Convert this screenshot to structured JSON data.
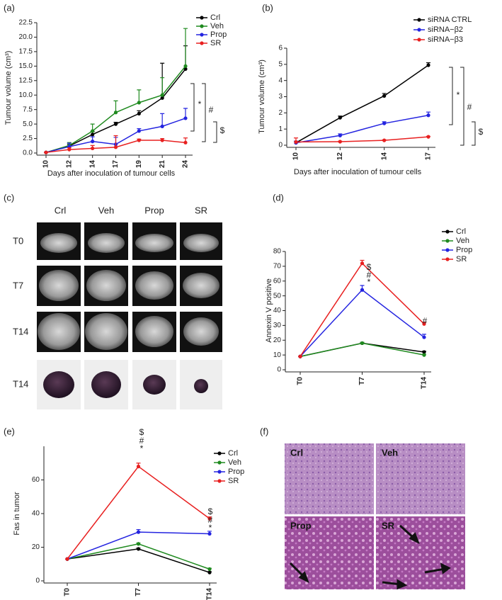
{
  "chart_data": [
    {
      "type": "line",
      "panel": "(a)",
      "x_label": "Days after inoculation of tumour cells",
      "y_label": "Tumour volume (cm³)",
      "categories": [
        "10",
        "12",
        "14",
        "17",
        "19",
        "21",
        "24"
      ],
      "ylim": [
        0,
        22.5
      ],
      "yticks": [
        {
          "value": 0,
          "label": "0.0"
        },
        2.5,
        {
          "value": 5,
          "label": "5.0"
        },
        7.5,
        {
          "value": 10,
          "label": "10.0"
        },
        12.5,
        {
          "value": 15,
          "label": "15.0"
        },
        17.5,
        {
          "value": 20,
          "label": "20.0"
        },
        22.5
      ],
      "series": [
        {
          "name": "Crl",
          "color": "#000000",
          "values": [
            0.1,
            1.2,
            3.2,
            5.0,
            6.8,
            9.5,
            14.5
          ],
          "errors": [
            0,
            0.3,
            0.5,
            0.3,
            0.5,
            6,
            4
          ]
        },
        {
          "name": "Veh",
          "color": "#1f8a1f",
          "values": [
            0.1,
            1.3,
            3.8,
            7.0,
            8.7,
            10.0,
            15.0
          ],
          "errors": [
            0,
            0.5,
            1.2,
            2,
            2.2,
            3,
            6.5
          ]
        },
        {
          "name": "Prop",
          "color": "#2424e0",
          "values": [
            0.1,
            1.1,
            2.0,
            1.5,
            3.8,
            4.6,
            6.0
          ],
          "errors": [
            0,
            0.6,
            0.8,
            1.2,
            0.4,
            2.2,
            1.7
          ]
        },
        {
          "name": "SR",
          "color": "#e82020",
          "values": [
            0.1,
            0.6,
            0.8,
            1.0,
            2.2,
            2.2,
            1.8
          ],
          "errors": [
            0,
            0.3,
            0.5,
            2,
            0.2,
            0.3,
            0.8
          ]
        }
      ],
      "annotations": [
        "*",
        "#",
        "$"
      ]
    },
    {
      "type": "line",
      "panel": "(b)",
      "x_label": "Days after inoculation of tumour cells",
      "y_label": "Tumour volume (cm³)",
      "categories": [
        "10",
        "12",
        "14",
        "17"
      ],
      "ylim": [
        0,
        6
      ],
      "yticks": [
        0,
        1,
        2,
        3,
        4,
        5,
        6
      ],
      "series": [
        {
          "name": "siRNA CTRL",
          "color": "#000000",
          "values": [
            0.15,
            1.7,
            3.05,
            4.95
          ],
          "errors": [
            0.1,
            0.1,
            0.15,
            0.15
          ]
        },
        {
          "name": "siRNA−β2",
          "color": "#2424e0",
          "values": [
            0.15,
            0.6,
            1.35,
            1.85
          ],
          "errors": [
            0.1,
            0.1,
            0.1,
            0.2
          ]
        },
        {
          "name": "siRNA−β3",
          "color": "#e82020",
          "values": [
            0.2,
            0.22,
            0.3,
            0.52
          ],
          "errors": [
            0.25,
            0.03,
            0.03,
            0.03
          ]
        }
      ],
      "annotations": [
        "*",
        "#",
        "$"
      ]
    },
    {
      "type": "line",
      "panel": "(d)",
      "y_label": "Annexin V positive",
      "categories": [
        "T0",
        "T7",
        "T14"
      ],
      "ylim": [
        0,
        80
      ],
      "yticks": [
        0,
        10,
        20,
        30,
        40,
        50,
        60,
        70,
        80
      ],
      "series": [
        {
          "name": "Crl",
          "color": "#000000",
          "values": [
            9,
            18,
            12
          ],
          "errors": [
            0,
            0.5,
            0.5
          ]
        },
        {
          "name": "Veh",
          "color": "#1f8a1f",
          "values": [
            9,
            18,
            10
          ],
          "errors": [
            0,
            0.5,
            0.5
          ]
        },
        {
          "name": "Prop",
          "color": "#2424e0",
          "values": [
            9,
            54,
            22
          ],
          "errors": [
            0,
            3,
            2
          ]
        },
        {
          "name": "SR",
          "color": "#e82020",
          "values": [
            9,
            72,
            31
          ],
          "errors": [
            0,
            2,
            1
          ]
        }
      ],
      "annotations": [
        "$",
        "#",
        "*",
        "#"
      ]
    },
    {
      "type": "line",
      "panel": "(e)",
      "y_label": "Fas in tumor",
      "categories": [
        "T0",
        "T7",
        "T14"
      ],
      "ylim": [
        0,
        80
      ],
      "yticks": [
        0,
        20,
        40,
        60
      ],
      "series": [
        {
          "name": "Crl",
          "color": "#000000",
          "values": [
            13,
            19,
            5
          ],
          "errors": [
            0,
            0.5,
            0.5
          ]
        },
        {
          "name": "Veh",
          "color": "#1f8a1f",
          "values": [
            13,
            22,
            7
          ],
          "errors": [
            0,
            0.5,
            0.5
          ]
        },
        {
          "name": "Prop",
          "color": "#2424e0",
          "values": [
            13,
            29,
            28
          ],
          "errors": [
            0,
            1.5,
            1.5
          ]
        },
        {
          "name": "SR",
          "color": "#e82020",
          "values": [
            13,
            68,
            37
          ],
          "errors": [
            0,
            2,
            1
          ]
        }
      ],
      "annotations": [
        "$",
        "#",
        "*",
        "$",
        "#",
        "*"
      ]
    }
  ],
  "panels": [
    {
      "label": "(c)",
      "columns": [
        "Crl",
        "Veh",
        "Prop",
        "SR"
      ],
      "rows": [
        "T0",
        "T7",
        "T14",
        "T14"
      ]
    },
    {
      "label": "(f)",
      "cells": [
        "Crl",
        "Veh",
        "Prop",
        "SR"
      ]
    }
  ]
}
